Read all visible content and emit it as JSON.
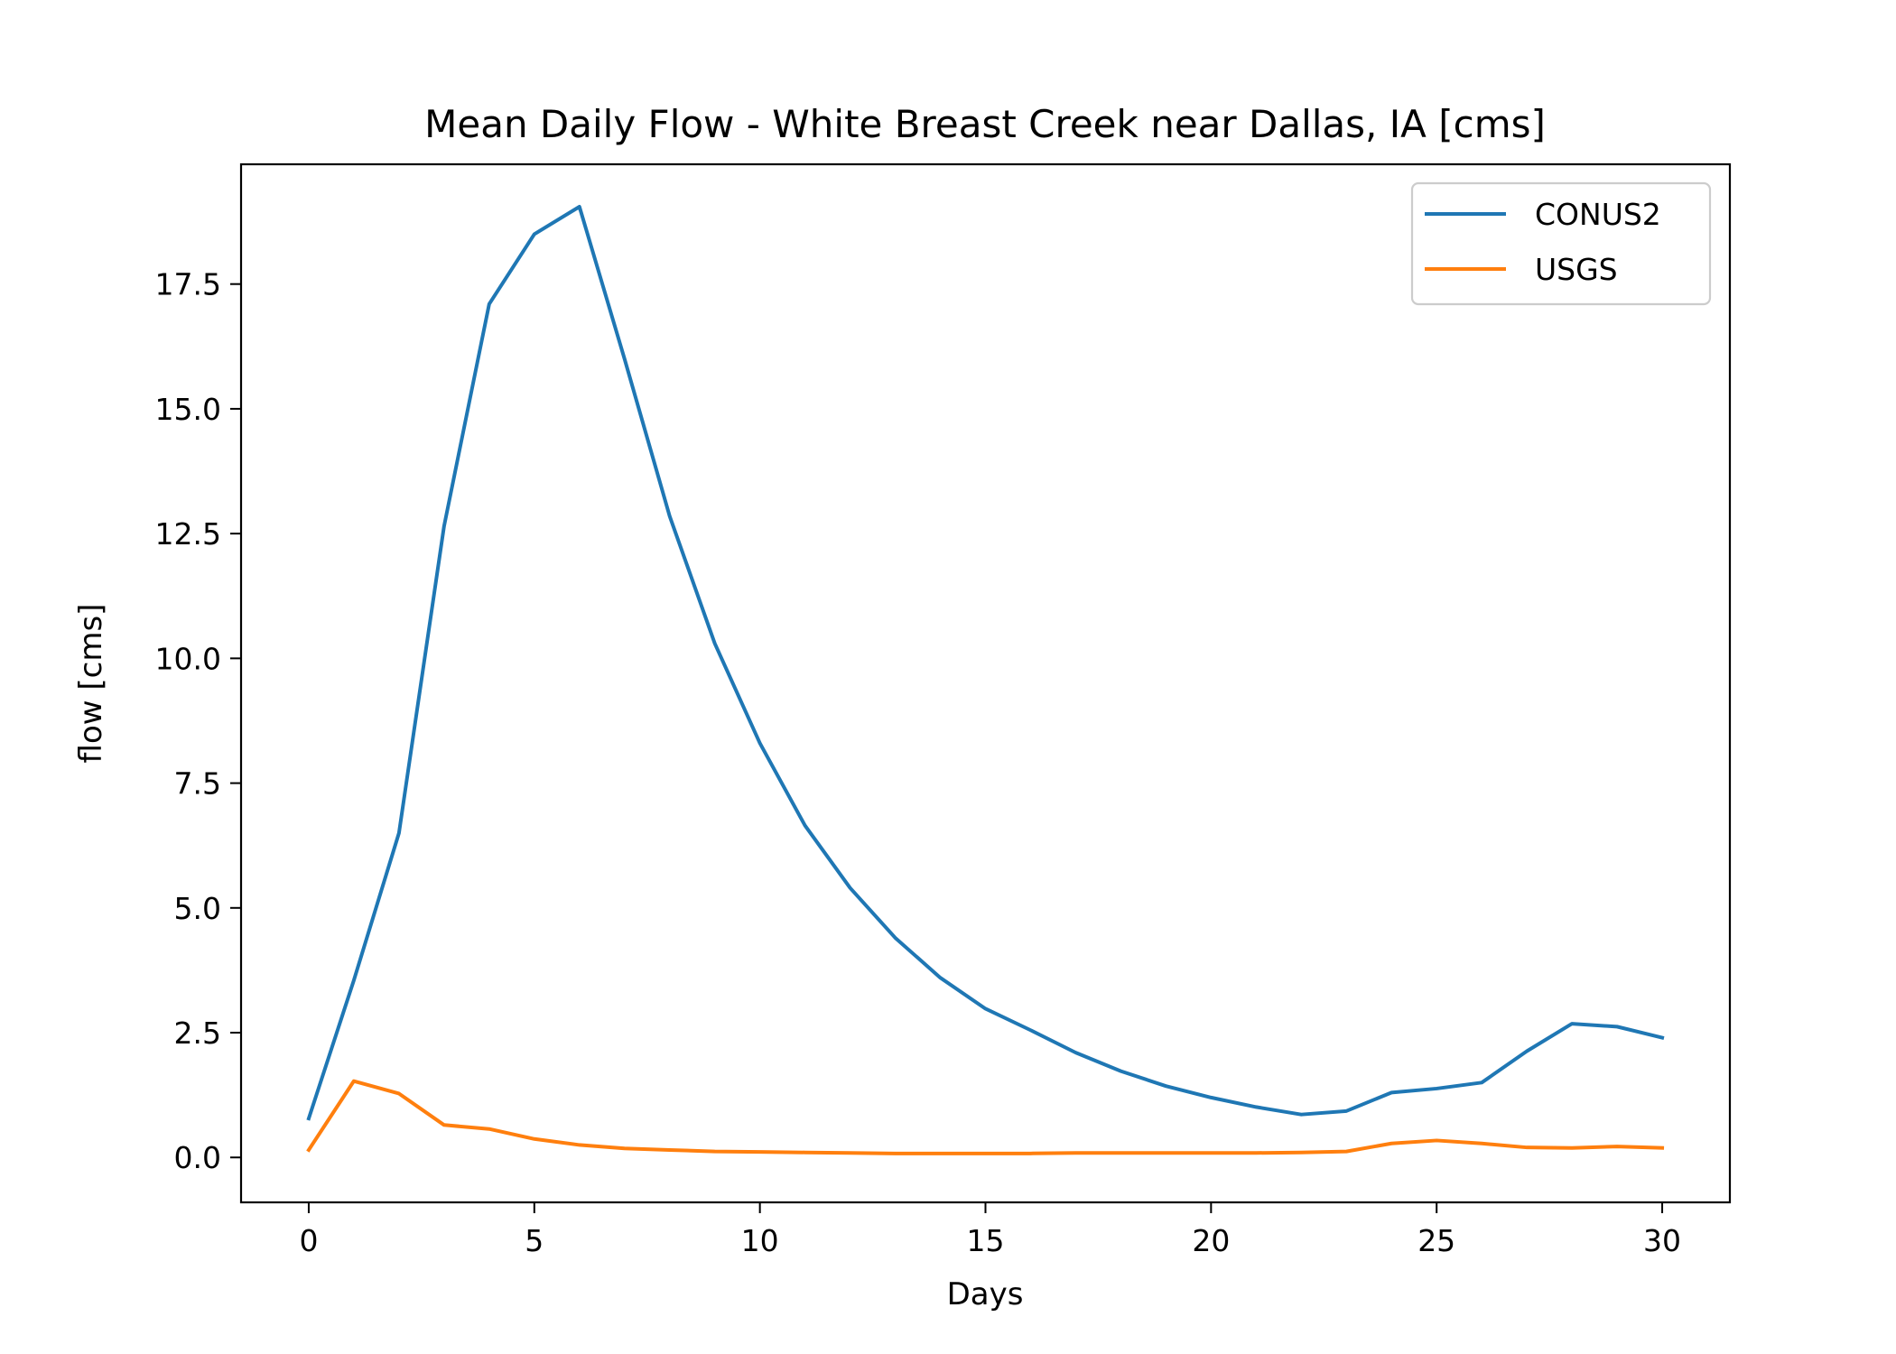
{
  "chart_data": {
    "type": "line",
    "title": "Mean Daily Flow - White Breast Creek near Dallas, IA [cms]",
    "xlabel": "Days",
    "ylabel": "flow [cms]",
    "xlim": [
      -1.5,
      31.5
    ],
    "ylim": [
      -0.9,
      19.9
    ],
    "xticks": [
      0,
      5,
      10,
      15,
      20,
      25,
      30
    ],
    "xtick_labels": [
      "0",
      "5",
      "10",
      "15",
      "20",
      "25",
      "30"
    ],
    "yticks": [
      0,
      2.5,
      5,
      7.5,
      10,
      12.5,
      15,
      17.5
    ],
    "ytick_labels": [
      "0.0",
      "2.5",
      "5.0",
      "7.5",
      "10.0",
      "12.5",
      "15.0",
      "17.5"
    ],
    "grid": false,
    "legend_position": "top-right",
    "x": [
      0,
      1,
      2,
      3,
      4,
      5,
      6,
      7,
      8,
      9,
      10,
      11,
      12,
      13,
      14,
      15,
      16,
      17,
      18,
      19,
      20,
      21,
      22,
      23,
      24,
      25,
      26,
      27,
      28,
      29,
      30
    ],
    "series": [
      {
        "name": "CONUS2",
        "color": "#1f77b4",
        "values": [
          0.78,
          3.55,
          6.5,
          12.65,
          17.1,
          18.5,
          19.05,
          16.0,
          12.85,
          10.3,
          8.3,
          6.65,
          5.4,
          4.4,
          3.6,
          2.98,
          2.55,
          2.1,
          1.73,
          1.43,
          1.2,
          1.01,
          0.86,
          0.93,
          1.3,
          1.38,
          1.5,
          2.13,
          2.68,
          2.62,
          2.4
        ],
        "marks": [
          {
            "id": "conus2-line"
          },
          {
            "id": "conus2-pt-0"
          },
          {
            "id": "conus2-pt-1"
          },
          {
            "id": "conus2-pt-2"
          },
          {
            "id": "conus2-pt-3"
          },
          {
            "id": "conus2-pt-4"
          },
          {
            "id": "conus2-pt-5"
          },
          {
            "id": "conus2-pt-6"
          },
          {
            "id": "conus2-pt-7"
          },
          {
            "id": "conus2-pt-8"
          },
          {
            "id": "conus2-pt-9"
          },
          {
            "id": "conus2-pt-10"
          },
          {
            "id": "conus2-pt-11"
          },
          {
            "id": "conus2-pt-12"
          },
          {
            "id": "conus2-pt-13"
          },
          {
            "id": "conus2-pt-14"
          },
          {
            "id": "conus2-pt-15"
          },
          {
            "id": "conus2-pt-16"
          },
          {
            "id": "conus2-pt-17"
          },
          {
            "id": "conus2-pt-18"
          },
          {
            "id": "conus2-pt-19"
          },
          {
            "id": "conus2-pt-20"
          },
          {
            "id": "conus2-pt-21"
          },
          {
            "id": "conus2-pt-22"
          },
          {
            "id": "conus2-pt-23"
          },
          {
            "id": "conus2-pt-24"
          },
          {
            "id": "conus2-pt-25"
          },
          {
            "id": "conus2-pt-26"
          },
          {
            "id": "conus2-pt-27"
          },
          {
            "id": "conus2-pt-28"
          },
          {
            "id": "conus2-pt-29"
          },
          {
            "id": "conus2-pt-30"
          }
        ]
      },
      {
        "name": "USGS",
        "color": "#ff7f0e",
        "values": [
          0.15,
          1.53,
          1.28,
          0.65,
          0.57,
          0.37,
          0.25,
          0.18,
          0.15,
          0.12,
          0.11,
          0.1,
          0.09,
          0.08,
          0.08,
          0.08,
          0.08,
          0.09,
          0.09,
          0.09,
          0.09,
          0.09,
          0.1,
          0.12,
          0.28,
          0.34,
          0.28,
          0.2,
          0.19,
          0.22,
          0.19
        ],
        "marks": [
          {
            "id": "usgs-line"
          },
          {
            "id": "usgs-pt-0"
          },
          {
            "id": "usgs-pt-1"
          },
          {
            "id": "usgs-pt-2"
          },
          {
            "id": "usgs-pt-3"
          },
          {
            "id": "usgs-pt-4"
          },
          {
            "id": "usgs-pt-5"
          },
          {
            "id": "usgs-pt-6"
          },
          {
            "id": "usgs-pt-7"
          },
          {
            "id": "usgs-pt-8"
          },
          {
            "id": "usgs-pt-9"
          },
          {
            "id": "usgs-pt-10"
          },
          {
            "id": "usgs-pt-11"
          },
          {
            "id": "usgs-pt-12"
          },
          {
            "id": "usgs-pt-13"
          },
          {
            "id": "usgs-pt-14"
          },
          {
            "id": "usgs-pt-15"
          },
          {
            "id": "usgs-pt-16"
          },
          {
            "id": "usgs-pt-17"
          },
          {
            "id": "usgs-pt-18"
          },
          {
            "id": "usgs-pt-19"
          },
          {
            "id": "usgs-pt-20"
          },
          {
            "id": "usgs-pt-21"
          },
          {
            "id": "usgs-pt-22"
          },
          {
            "id": "usgs-pt-23"
          },
          {
            "id": "usgs-pt-24"
          },
          {
            "id": "usgs-pt-25"
          },
          {
            "id": "usgs-pt-26"
          },
          {
            "id": "usgs-pt-27"
          },
          {
            "id": "usgs-pt-28"
          },
          {
            "id": "usgs-pt-29"
          },
          {
            "id": "usgs-pt-30"
          }
        ]
      }
    ]
  }
}
